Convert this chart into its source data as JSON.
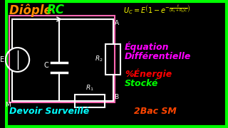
{
  "eq_line1": "Équation",
  "eq_line2": "Différentielle",
  "en_line1": "%Énergie",
  "en_line2": "Stocké",
  "bottom_left": "Devoir Surveillé",
  "bottom_right": "2Bac SM",
  "bg_color": "#000000",
  "border_color": "#00ff00",
  "circuit_border_color": "#ff69b4",
  "title_color_diople": "#ff8c00",
  "title_color_RC": "#00ff00",
  "formula_color": "#ffff00",
  "eq_color": "#ff00ff",
  "en_color1": "#ff0000",
  "en_color2": "#00ff00",
  "bottom_left_color": "#00ffff",
  "bottom_right_color": "#ff4500",
  "wire_color": "#ffffff"
}
